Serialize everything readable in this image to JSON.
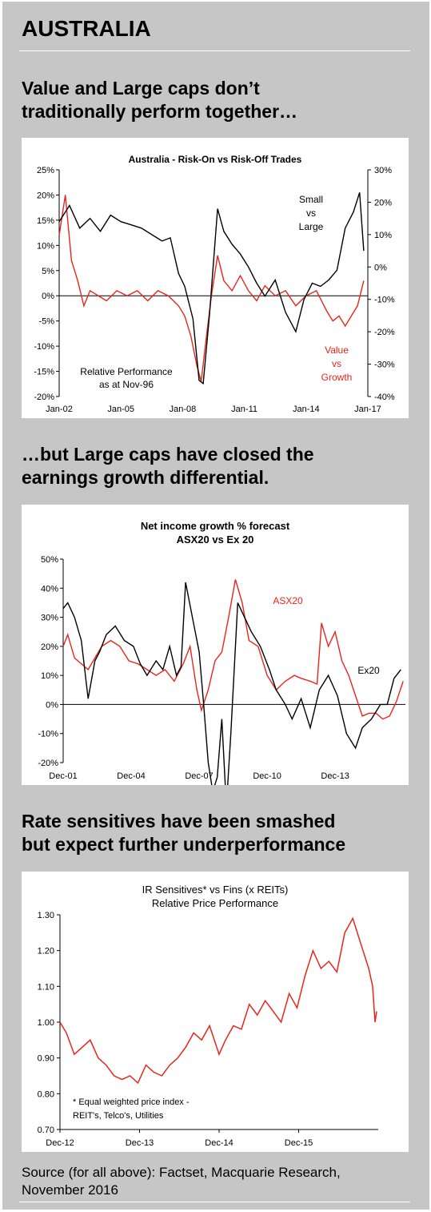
{
  "page": {
    "title": "AUSTRALIA",
    "heading1": [
      "Value and Large caps don’t",
      "traditionally perform together…"
    ],
    "heading2": [
      "…but Large caps have closed the",
      "earnings growth differential."
    ],
    "heading3": [
      "Rate sensitives have been smashed",
      "but expect further underperformance"
    ],
    "source": [
      "Source (for all above): Factset, Macquarie Research,",
      "November 2016"
    ],
    "colors": {
      "panel": "#c6c6c6",
      "black_series": "#000000",
      "red_series": "#e8241b"
    }
  },
  "chart_data": [
    {
      "type": "line",
      "title": "Australia - Risk-On vs Risk-Off Trades",
      "x_ticks": [
        "Jan-02",
        "Jan-05",
        "Jan-08",
        "Jan-11",
        "Jan-14",
        "Jan-17"
      ],
      "y_left": {
        "ticks": [
          "25%",
          "20%",
          "15%",
          "10%",
          "5%",
          "0%",
          "-5%",
          "-10%",
          "-15%",
          "-20%"
        ],
        "ylim": [
          -20,
          25
        ]
      },
      "y_right": {
        "ticks": [
          "30%",
          "20%",
          "10%",
          "0%",
          "-10%",
          "-20%",
          "-30%",
          "-40%"
        ],
        "ylim": [
          -40,
          30
        ]
      },
      "annotations": {
        "small_vs_large": [
          "Small",
          "vs",
          "Large"
        ],
        "value_vs_growth": [
          "Value",
          "vs",
          "Growth"
        ],
        "note": [
          "Relative Performance",
          "as at Nov-96"
        ]
      },
      "series": [
        {
          "name": "Small vs Large",
          "axis": "right",
          "color": "#000000",
          "x": [
            2002.0,
            2002.5,
            2003.0,
            2003.5,
            2004.0,
            2004.5,
            2005.0,
            2005.5,
            2006.0,
            2006.5,
            2007.0,
            2007.4,
            2007.8,
            2008.1,
            2008.5,
            2008.8,
            2009.0,
            2009.3,
            2009.7,
            2010.0,
            2010.4,
            2010.8,
            2011.2,
            2011.6,
            2012.0,
            2012.5,
            2013.0,
            2013.5,
            2013.9,
            2014.3,
            2014.7,
            2015.1,
            2015.5,
            2015.9,
            2016.3,
            2016.6,
            2016.8
          ],
          "values": [
            14,
            19,
            12,
            15,
            11,
            16,
            14,
            13,
            12,
            10,
            8,
            9,
            -2,
            -6,
            -16,
            -35,
            -36,
            -15,
            18,
            11,
            7,
            4,
            0,
            -5,
            -9,
            -4,
            -14,
            -20,
            -10,
            -5,
            -6,
            -4,
            -1,
            12,
            17,
            23,
            5
          ]
        },
        {
          "name": "Value vs Growth",
          "axis": "left",
          "color": "#e8241b",
          "x": [
            2002.0,
            2002.3,
            2002.6,
            2002.9,
            2003.2,
            2003.5,
            2003.9,
            2004.3,
            2004.8,
            2005.3,
            2005.8,
            2006.3,
            2006.8,
            2007.3,
            2007.8,
            2008.1,
            2008.4,
            2008.7,
            2008.9,
            2009.1,
            2009.4,
            2009.7,
            2010.0,
            2010.4,
            2010.8,
            2011.2,
            2011.6,
            2012.0,
            2012.5,
            2013.0,
            2013.5,
            2014.0,
            2014.5,
            2015.0,
            2015.3,
            2015.6,
            2015.9,
            2016.2,
            2016.5,
            2016.8
          ],
          "values": [
            12,
            20,
            7,
            3,
            -2,
            1,
            0,
            -1,
            1,
            0,
            1,
            -1,
            1,
            0,
            -2,
            -4,
            -8,
            -14,
            -17,
            -10,
            0,
            8,
            3,
            1,
            4,
            1,
            -1,
            2,
            0,
            1,
            -2,
            0,
            1,
            -3,
            -5,
            -4,
            -6,
            -4,
            -2,
            3
          ]
        }
      ]
    },
    {
      "type": "line",
      "title": [
        "Net income growth % forecast",
        "ASX20 vs Ex 20"
      ],
      "x_ticks": [
        "Dec-01",
        "Dec-04",
        "Dec-07",
        "Dec-10",
        "Dec-13"
      ],
      "y_ticks": [
        "50%",
        "40%",
        "30%",
        "20%",
        "10%",
        "0%",
        "-10%",
        "-20%"
      ],
      "ylim": [
        -20,
        50
      ],
      "labels": {
        "asx20": "ASX20",
        "ex20": "Ex20"
      },
      "series": [
        {
          "name": "Ex20",
          "color": "#000000",
          "x": [
            2001.9,
            2002.1,
            2002.4,
            2002.7,
            2003.0,
            2003.3,
            2003.5,
            2003.8,
            2004.2,
            2004.6,
            2005.0,
            2005.3,
            2005.6,
            2006.0,
            2006.3,
            2006.6,
            2006.9,
            2007.1,
            2007.3,
            2007.6,
            2007.9,
            2008.1,
            2008.3,
            2008.5,
            2008.7,
            2008.9,
            2009.1,
            2009.3,
            2009.6,
            2009.9,
            2010.2,
            2010.6,
            2011.0,
            2011.3,
            2011.7,
            2012.0,
            2012.4,
            2012.8,
            2013.2,
            2013.6,
            2014.0,
            2014.4,
            2014.8,
            2015.1,
            2015.5,
            2015.9,
            2016.2,
            2016.5,
            2016.8
          ],
          "values": [
            33,
            35,
            30,
            22,
            2,
            15,
            18,
            24,
            27,
            22,
            20,
            14,
            10,
            15,
            12,
            20,
            10,
            13,
            42,
            30,
            18,
            0,
            -20,
            -30,
            -25,
            -5,
            -35,
            -10,
            35,
            30,
            25,
            20,
            12,
            5,
            0,
            -5,
            2,
            -8,
            5,
            10,
            3,
            -10,
            -15,
            -8,
            -5,
            0,
            0,
            9,
            12
          ]
        },
        {
          "name": "ASX20",
          "color": "#e8241b",
          "x": [
            2001.9,
            2002.1,
            2002.4,
            2002.7,
            2003.0,
            2003.3,
            2003.6,
            2004.0,
            2004.4,
            2004.8,
            2005.2,
            2005.6,
            2006.0,
            2006.4,
            2006.8,
            2007.2,
            2007.5,
            2007.8,
            2008.0,
            2008.3,
            2008.6,
            2008.9,
            2009.2,
            2009.5,
            2009.8,
            2010.1,
            2010.5,
            2010.9,
            2011.3,
            2011.7,
            2012.1,
            2012.4,
            2012.8,
            2013.1,
            2013.3,
            2013.6,
            2013.9,
            2014.2,
            2014.5,
            2014.8,
            2015.1,
            2015.4,
            2015.7,
            2016.0,
            2016.3,
            2016.6,
            2016.9
          ],
          "values": [
            20,
            24,
            16,
            14,
            12,
            16,
            20,
            22,
            20,
            15,
            14,
            12,
            10,
            12,
            8,
            14,
            20,
            5,
            -2,
            5,
            15,
            18,
            30,
            43,
            35,
            22,
            20,
            10,
            5,
            8,
            10,
            9,
            8,
            7,
            28,
            20,
            25,
            15,
            10,
            3,
            -4,
            -3,
            -3,
            -5,
            -4,
            1,
            8
          ]
        }
      ]
    },
    {
      "type": "line",
      "title": [
        "IR Sensitives* vs Fins (x REITs)",
        "Relative Price Performance"
      ],
      "x_ticks": [
        "Dec-12",
        "Dec-13",
        "Dec-14",
        "Dec-15"
      ],
      "y_ticks": [
        "1.30",
        "1.20",
        "1.10",
        "1.00",
        "0.90",
        "0.80",
        "0.70"
      ],
      "ylim": [
        0.7,
        1.3
      ],
      "footnote": [
        "* Equal weighted price index -",
        "REIT's, Telco's, Utilities"
      ],
      "series": [
        {
          "name": "IR Sensitives vs Fins",
          "color": "#e8241b",
          "x": [
            2012.92,
            2013.0,
            2013.1,
            2013.2,
            2013.3,
            2013.4,
            2013.5,
            2013.6,
            2013.7,
            2013.8,
            2013.9,
            2014.0,
            2014.1,
            2014.2,
            2014.3,
            2014.4,
            2014.5,
            2014.6,
            2014.7,
            2014.8,
            2014.92,
            2015.0,
            2015.1,
            2015.2,
            2015.3,
            2015.4,
            2015.5,
            2015.6,
            2015.7,
            2015.8,
            2015.9,
            2016.0,
            2016.1,
            2016.2,
            2016.3,
            2016.4,
            2016.5,
            2016.6,
            2016.7,
            2016.8,
            2016.85,
            2016.88,
            2016.9
          ],
          "values": [
            1.0,
            0.97,
            0.91,
            0.93,
            0.95,
            0.9,
            0.88,
            0.85,
            0.84,
            0.85,
            0.83,
            0.88,
            0.86,
            0.85,
            0.88,
            0.9,
            0.93,
            0.97,
            0.95,
            0.99,
            0.91,
            0.95,
            0.99,
            0.98,
            1.05,
            1.02,
            1.06,
            1.03,
            1.0,
            1.08,
            1.04,
            1.13,
            1.2,
            1.15,
            1.17,
            1.14,
            1.25,
            1.29,
            1.22,
            1.15,
            1.1,
            1.0,
            1.03
          ]
        }
      ]
    }
  ]
}
